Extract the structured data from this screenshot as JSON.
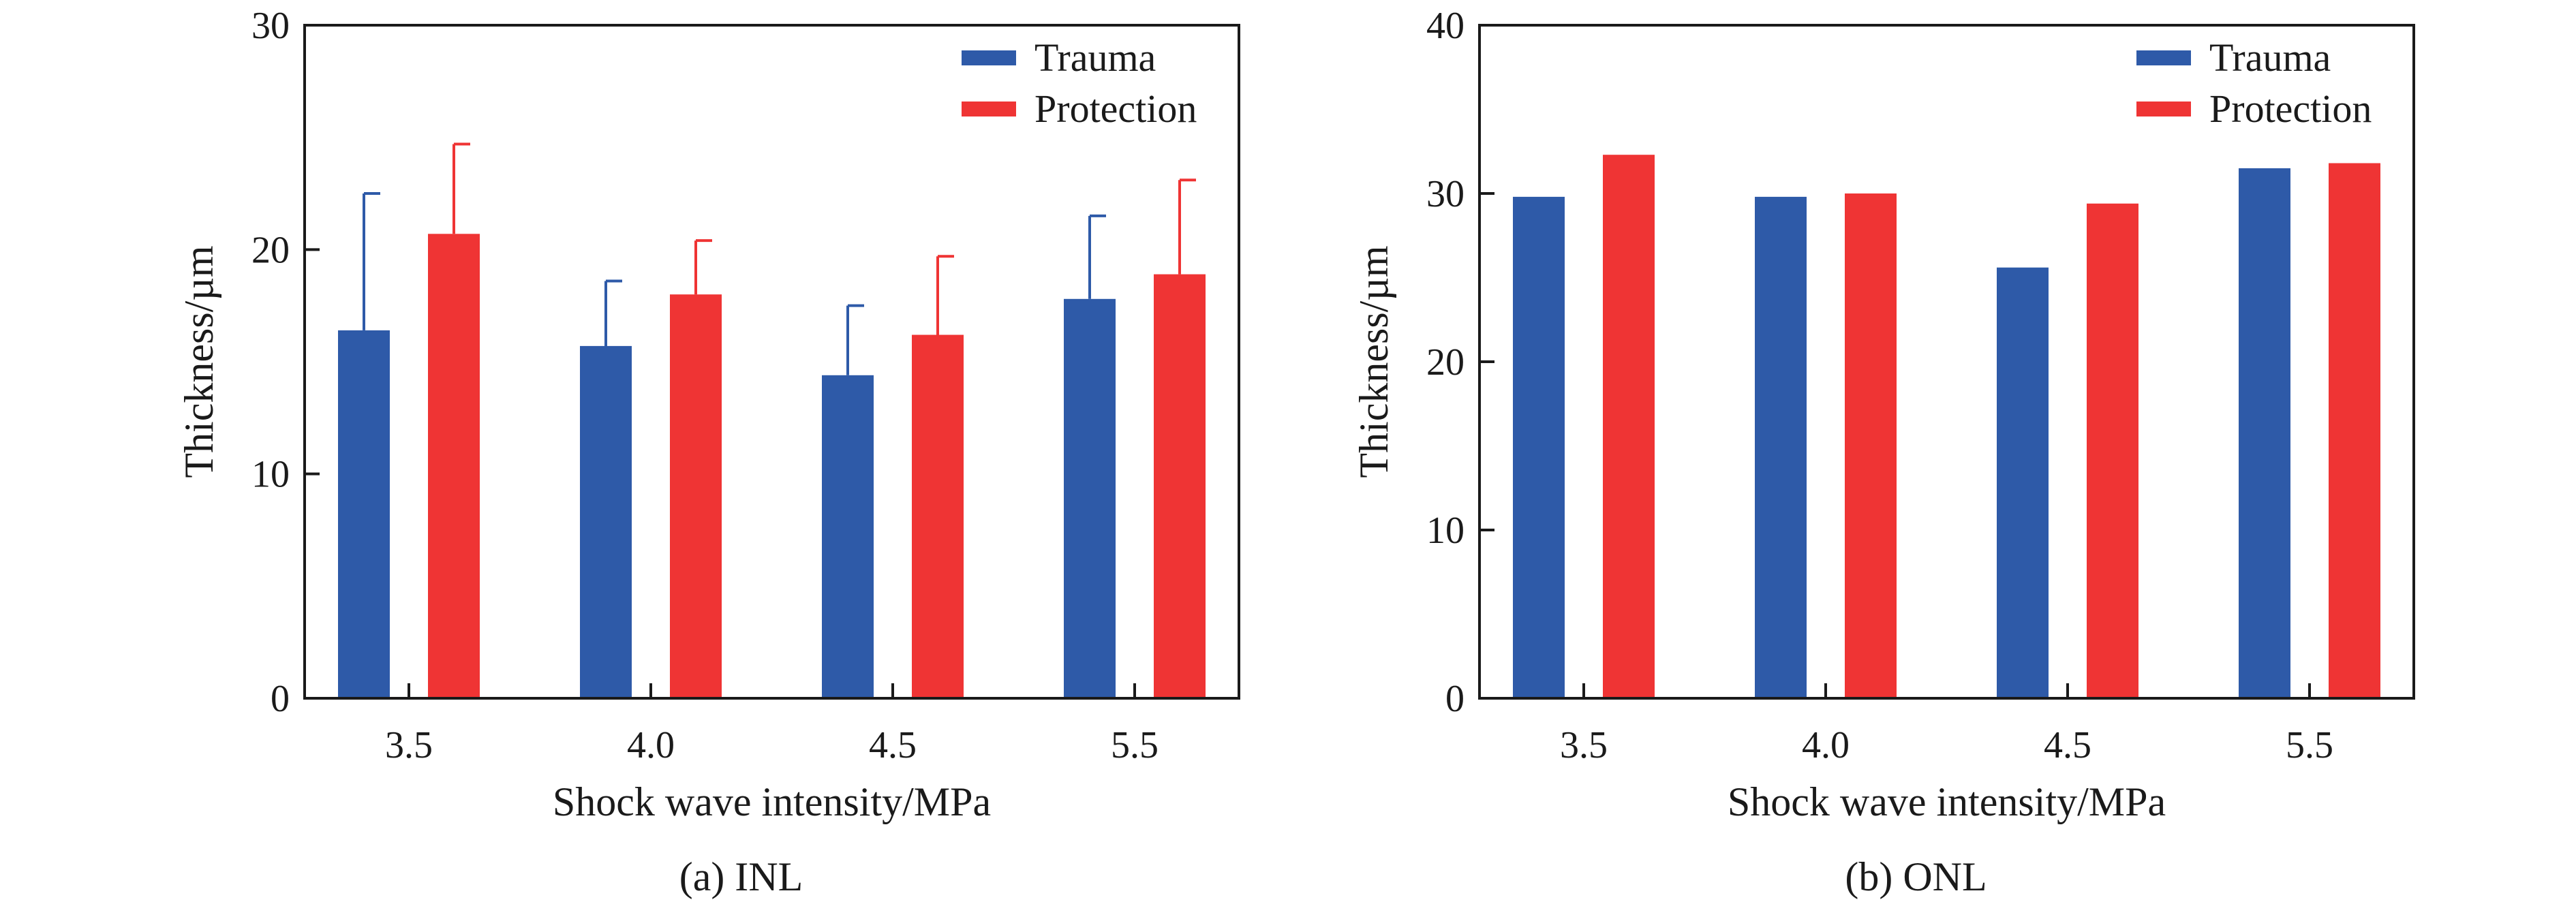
{
  "chart_data": [
    {
      "type": "bar",
      "caption": "(a) INL",
      "categories": [
        "3.5",
        "4.0",
        "4.5",
        "5.5"
      ],
      "xlabel": "Shock wave intensity/MPa",
      "ylabel": "Thickness/µm",
      "ylim": [
        0,
        30
      ],
      "yticks": [
        0,
        10,
        20,
        30
      ],
      "legend_position": "top-right",
      "series": [
        {
          "name": "Trauma",
          "color": "#2e5aa8",
          "values": [
            16.4,
            15.7,
            14.4,
            17.8
          ],
          "error_upper": [
            22.5,
            18.6,
            17.5,
            21.5
          ]
        },
        {
          "name": "Protection",
          "color": "#ef3434",
          "values": [
            20.7,
            18.0,
            16.2,
            18.9
          ],
          "error_upper": [
            24.7,
            20.4,
            19.7,
            23.1
          ]
        }
      ]
    },
    {
      "type": "bar",
      "caption": "(b) ONL",
      "categories": [
        "3.5",
        "4.0",
        "4.5",
        "5.5"
      ],
      "xlabel": "Shock wave intensity/MPa",
      "ylabel": "Thickness/µm",
      "ylim": [
        0,
        40
      ],
      "yticks": [
        0,
        10,
        20,
        30,
        40
      ],
      "legend_position": "top-right",
      "series": [
        {
          "name": "Trauma",
          "color": "#2e5aa8",
          "values": [
            29.8,
            29.8,
            25.6,
            31.5
          ]
        },
        {
          "name": "Protection",
          "color": "#ef3434",
          "values": [
            32.3,
            30.0,
            29.4,
            31.8
          ]
        }
      ]
    }
  ]
}
